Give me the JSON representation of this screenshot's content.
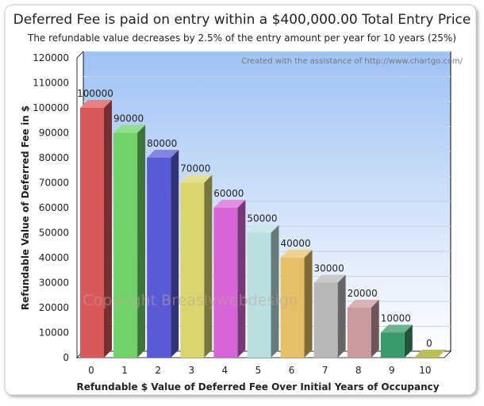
{
  "chart_data": {
    "type": "bar",
    "title": "Deferred Fee is paid on entry within a $400,000.00 Total Entry Price",
    "subtitle": "The refundable value decreases by 2.5% of the entry amount per year for 10 years (25%)",
    "xlabel": "Refundable $ Value of Deferred Fee Over Initial Years of Occupancy",
    "ylabel": "Refundable Value of Deferred Fee in $",
    "categories": [
      "0",
      "1",
      "2",
      "3",
      "4",
      "5",
      "6",
      "7",
      "8",
      "9",
      "10"
    ],
    "values": [
      100000,
      90000,
      80000,
      70000,
      60000,
      50000,
      40000,
      30000,
      20000,
      10000,
      0
    ],
    "ylim": [
      0,
      120000
    ],
    "yticks": [
      0,
      10000,
      20000,
      30000,
      40000,
      50000,
      60000,
      70000,
      80000,
      90000,
      100000,
      110000,
      120000
    ],
    "grid": true,
    "legend": "none",
    "colors": [
      "#d9585a",
      "#6fd36a",
      "#5a5ad6",
      "#d9d66e",
      "#d865d8",
      "#b9e0e0",
      "#e6c066",
      "#b8b8b8",
      "#c99a9e",
      "#3a9a6a",
      "#a8a820"
    ],
    "credit": "Created with the assistance of http://www.chartgo.com/",
    "watermark": "Copyright Breaslywebdesign"
  }
}
